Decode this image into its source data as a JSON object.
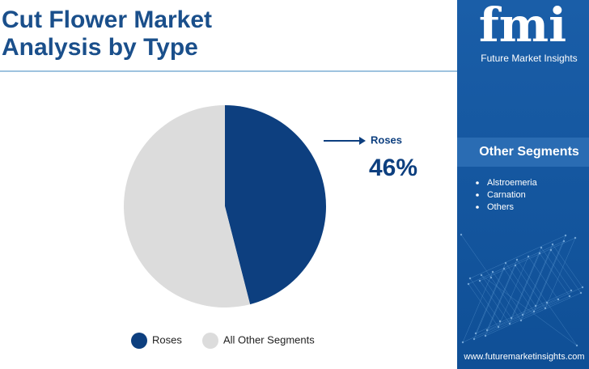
{
  "chart_data": {
    "type": "pie",
    "title": "Cut Flower Market Analysis by Type",
    "categories": [
      "Roses",
      "All Other Segments"
    ],
    "values": [
      46,
      54
    ],
    "value_labels": [
      "46%",
      null
    ],
    "colors": [
      "#0d3f7f",
      "#dcdcdc"
    ]
  },
  "brand": {
    "logo": "fmi",
    "name": "Future Market Insights",
    "website": "www.futuremarketinsights.com"
  },
  "sidebar": {
    "heading": "Other Segments",
    "items": [
      "Alstroemeria",
      "Carnation",
      "Others"
    ]
  }
}
